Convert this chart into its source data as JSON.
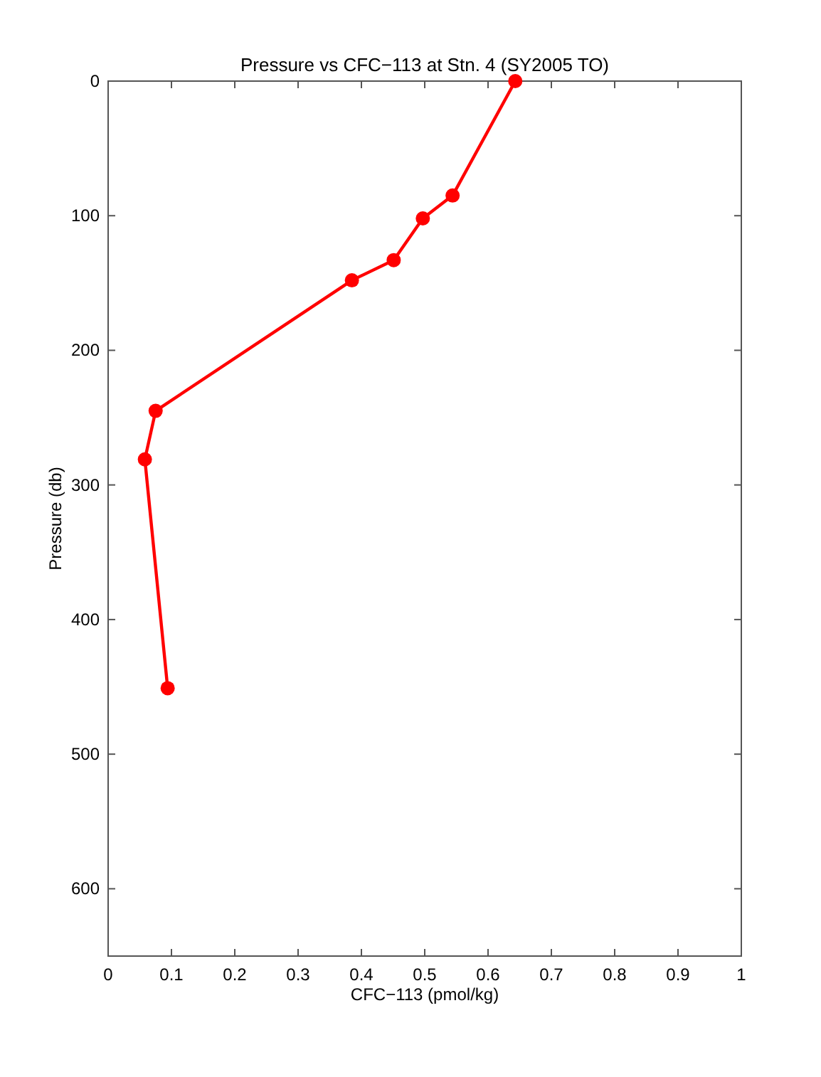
{
  "chart_data": {
    "type": "line",
    "title": "Pressure vs CFC−113 at Stn. 4 (SY2005 TO)",
    "xlabel": "CFC−113 (pmol/kg)",
    "ylabel": "Pressure (db)",
    "x": [
      0.643,
      0.544,
      0.497,
      0.451,
      0.385,
      0.075,
      0.058,
      0.094
    ],
    "series": [
      {
        "color": "#ff0000",
        "values": [
          0,
          85,
          102,
          133,
          148,
          245,
          281,
          451
        ]
      }
    ],
    "xlim": [
      0,
      1
    ],
    "xticks": [
      0,
      0.1,
      0.2,
      0.3,
      0.4,
      0.5,
      0.6,
      0.7,
      0.8,
      0.9,
      1
    ],
    "ylim": [
      650,
      0
    ],
    "yticks": [
      0,
      100,
      200,
      300,
      400,
      500,
      600
    ],
    "marker": "circle",
    "line_style": "solid",
    "grid": false
  }
}
